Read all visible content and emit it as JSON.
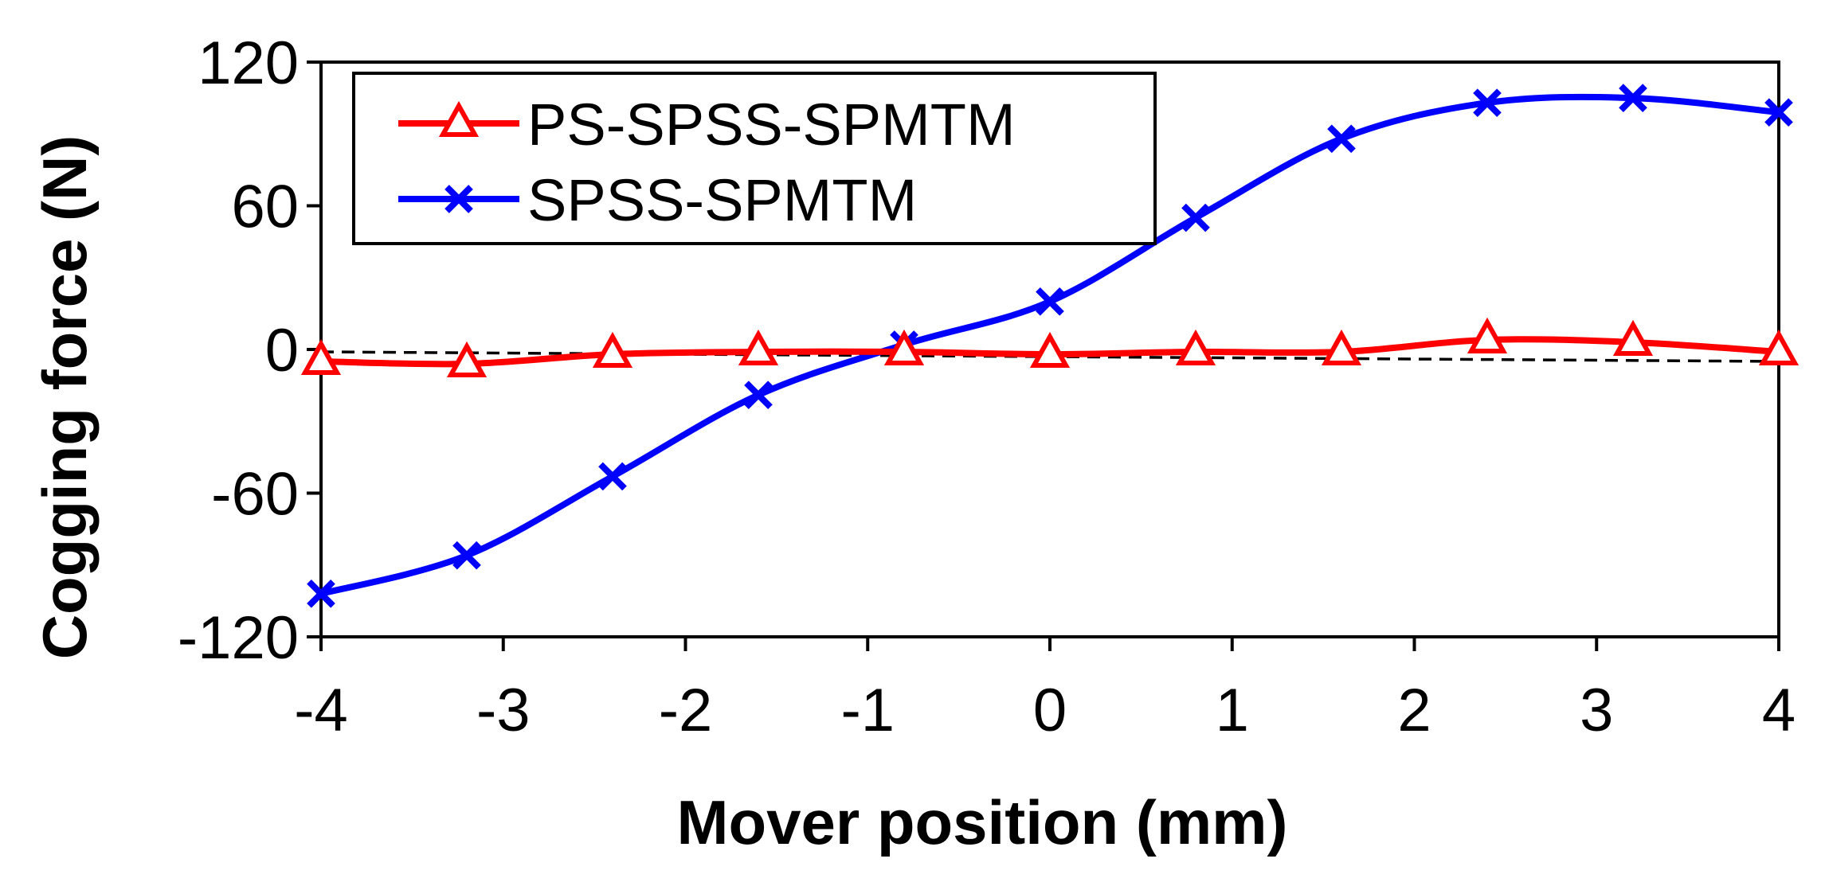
{
  "chart_data": {
    "type": "line",
    "title": "",
    "xlabel": "Mover position (mm)",
    "ylabel": "Cogging force (N)",
    "xlim": [
      -4,
      4
    ],
    "ylim": [
      -120,
      120
    ],
    "xticks": [
      -4,
      -3,
      -2,
      -1,
      0,
      1,
      2,
      3,
      4
    ],
    "yticks": [
      -120,
      -60,
      0,
      60,
      120
    ],
    "xtick_labels": [
      "-4",
      "-3",
      "-2",
      "-1",
      "0",
      "1",
      "2",
      "3",
      "4"
    ],
    "ytick_labels": [
      "-120",
      "-60",
      "0",
      "60",
      "120"
    ],
    "grid": false,
    "legend_position": "top-left",
    "x": [
      -4,
      -3.2,
      -2.4,
      -1.6,
      -0.8,
      0,
      0.8,
      1.6,
      2.4,
      3.2,
      4
    ],
    "series": [
      {
        "name": "PS-SPSS-SPMTM",
        "color": "#ff0000",
        "marker": "triangle",
        "values": [
          -5,
          -6,
          -2,
          -1,
          -1,
          -2,
          -1,
          -1,
          4,
          3,
          -1
        ]
      },
      {
        "name": "SPSS-SPMTM",
        "color": "#0000ff",
        "marker": "x",
        "values": [
          -102,
          -86,
          -53,
          -19,
          2,
          20,
          55,
          88,
          103,
          105,
          99
        ]
      }
    ],
    "reference_line": {
      "style": "dashed",
      "color": "#000000",
      "from": [
        -4,
        -1
      ],
      "to": [
        4,
        -5
      ]
    }
  }
}
